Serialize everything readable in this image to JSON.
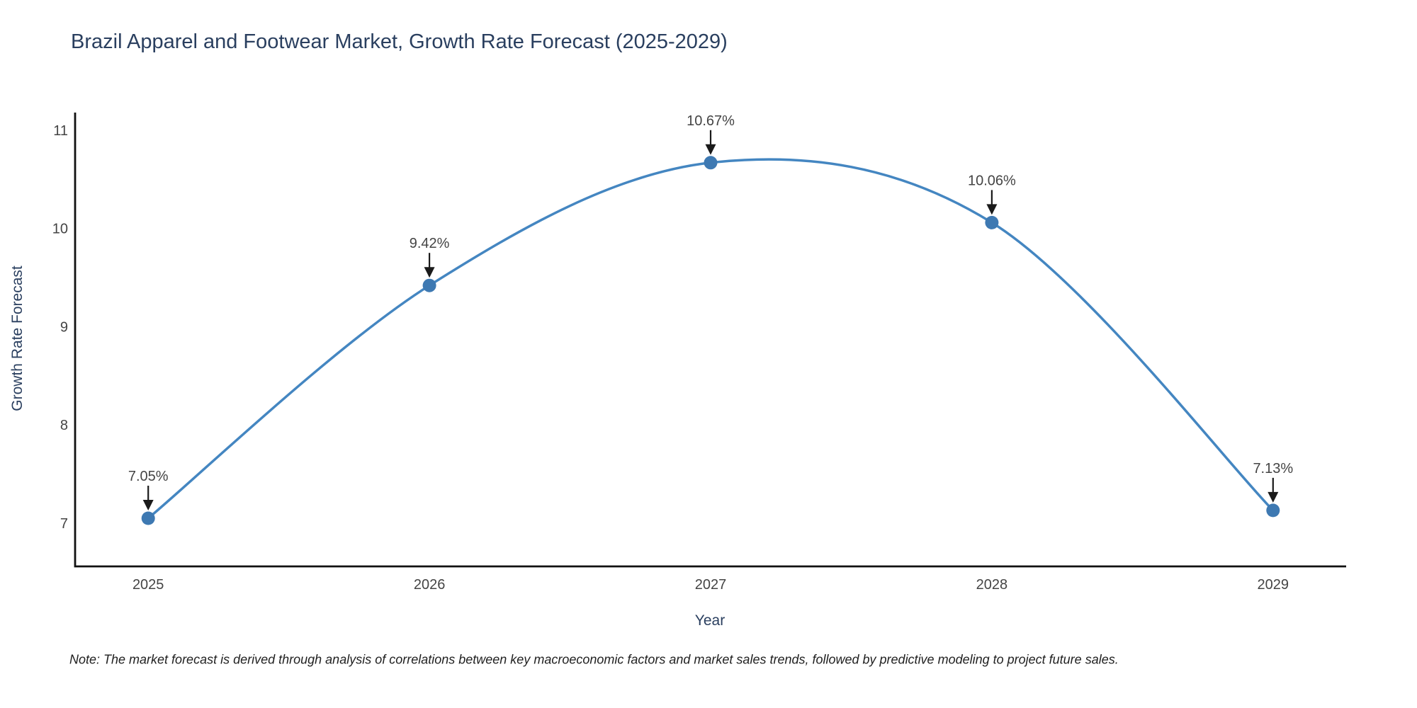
{
  "chart_data": {
    "type": "line",
    "line_shape": "spline",
    "title": "Brazil Apparel and Footwear Market, Growth Rate Forecast (2025-2029)",
    "xlabel": "Year",
    "ylabel": "Growth Rate Forecast",
    "x": [
      2025,
      2026,
      2027,
      2028,
      2029
    ],
    "xticks": [
      "2025",
      "2026",
      "2027",
      "2028",
      "2029"
    ],
    "yticks": [
      "7",
      "8",
      "9",
      "10",
      "11"
    ],
    "ytick_values": [
      7,
      8,
      9,
      10,
      11
    ],
    "series": [
      {
        "name": "Growth Rate Forecast",
        "values": [
          7.05,
          9.42,
          10.67,
          10.06,
          7.13
        ]
      }
    ],
    "point_labels": [
      "7.05%",
      "9.42%",
      "10.67%",
      "10.06%",
      "7.13%"
    ],
    "xlim": [
      2024.74,
      2029.26
    ],
    "ylim": [
      6.56,
      11.18
    ],
    "grid": false,
    "legend": "none",
    "annotation_style": "arrow-down",
    "colors": {
      "line": "#4486c1",
      "marker": "#3e79b2",
      "arrow": "#1a1a1a",
      "title": "#2a3f5f",
      "axis_title": "#2a3f5f",
      "tick_label": "#444444",
      "axis_line": "#111111",
      "annotation_text": "#444444",
      "background": "#ffffff"
    },
    "note": "Note: The market forecast is derived through analysis of correlations between key macroeconomic factors and market sales trends, followed by predictive modeling to project future sales."
  }
}
